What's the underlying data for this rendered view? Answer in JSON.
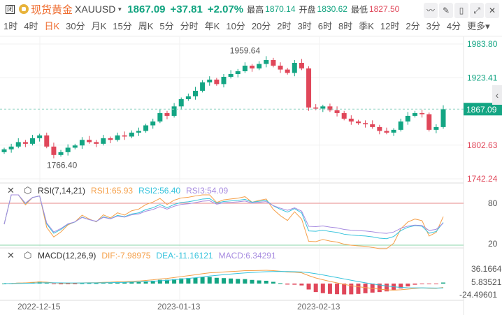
{
  "header": {
    "close_icon_label": "闭",
    "name": "现货黄金",
    "symbol": "XAUUSD",
    "price": "1867.09",
    "change": "+37.81",
    "change_pct": "+2.07%",
    "high_label": "最高",
    "high": "1870.14",
    "open_label": "开盘",
    "open": "1830.62",
    "low_label": "最低",
    "low": "1827.50"
  },
  "periods": [
    "1时",
    "4时",
    "日K",
    "30分",
    "月K",
    "15分",
    "周K",
    "5分",
    "分时",
    "年K",
    "10分",
    "20分",
    "2时",
    "3时",
    "6时",
    "8时",
    "季K",
    "12时",
    "2分",
    "3分",
    "4分",
    "更多"
  ],
  "active_period": "日K",
  "price_axis": {
    "labels": [
      "1983.80",
      "1923.41",
      "1802.63",
      "1742.24"
    ],
    "current": "1867.09",
    "max_mark": "1959.64",
    "min_mark": "1766.40",
    "range": [
      1742.24,
      1983.8
    ]
  },
  "rsi": {
    "title": "RSI(7,14,21)",
    "rsi1": "RSI1:65.93",
    "rsi2": "RSI2:56.40",
    "rsi3": "RSI3:54.09",
    "levels": [
      "80",
      "20"
    ]
  },
  "macd": {
    "title": "MACD(12,26,9)",
    "dif": "DIF:-7.98975",
    "dea": "DEA:-11.16121",
    "macd": "MACD:6.34291",
    "labels": [
      "36.16643",
      "5.83521",
      "-24.49601"
    ]
  },
  "dates": [
    "2022-12-15",
    "2023-01-13",
    "2023-02-13"
  ],
  "colors": {
    "up": "#13a583",
    "down": "#e0475a",
    "rsi1": "#f5a04a",
    "rsi2": "#36c3dc",
    "rsi3": "#a78be0"
  },
  "chart_data": {
    "type": "candlestick",
    "closes": [
      1795,
      1800,
      1808,
      1805,
      1815,
      1820,
      1800,
      1785,
      1790,
      1798,
      1802,
      1812,
      1808,
      1805,
      1815,
      1812,
      1820,
      1818,
      1825,
      1828,
      1838,
      1845,
      1860,
      1855,
      1872,
      1885,
      1890,
      1900,
      1915,
      1920,
      1912,
      1925,
      1930,
      1935,
      1945,
      1940,
      1948,
      1955,
      1945,
      1938,
      1932,
      1950,
      1940,
      1870,
      1868,
      1872,
      1865,
      1860,
      1850,
      1845,
      1842,
      1840,
      1835,
      1828,
      1825,
      1830,
      1845,
      1855,
      1860,
      1858,
      1830,
      1835,
      1867
    ]
  }
}
